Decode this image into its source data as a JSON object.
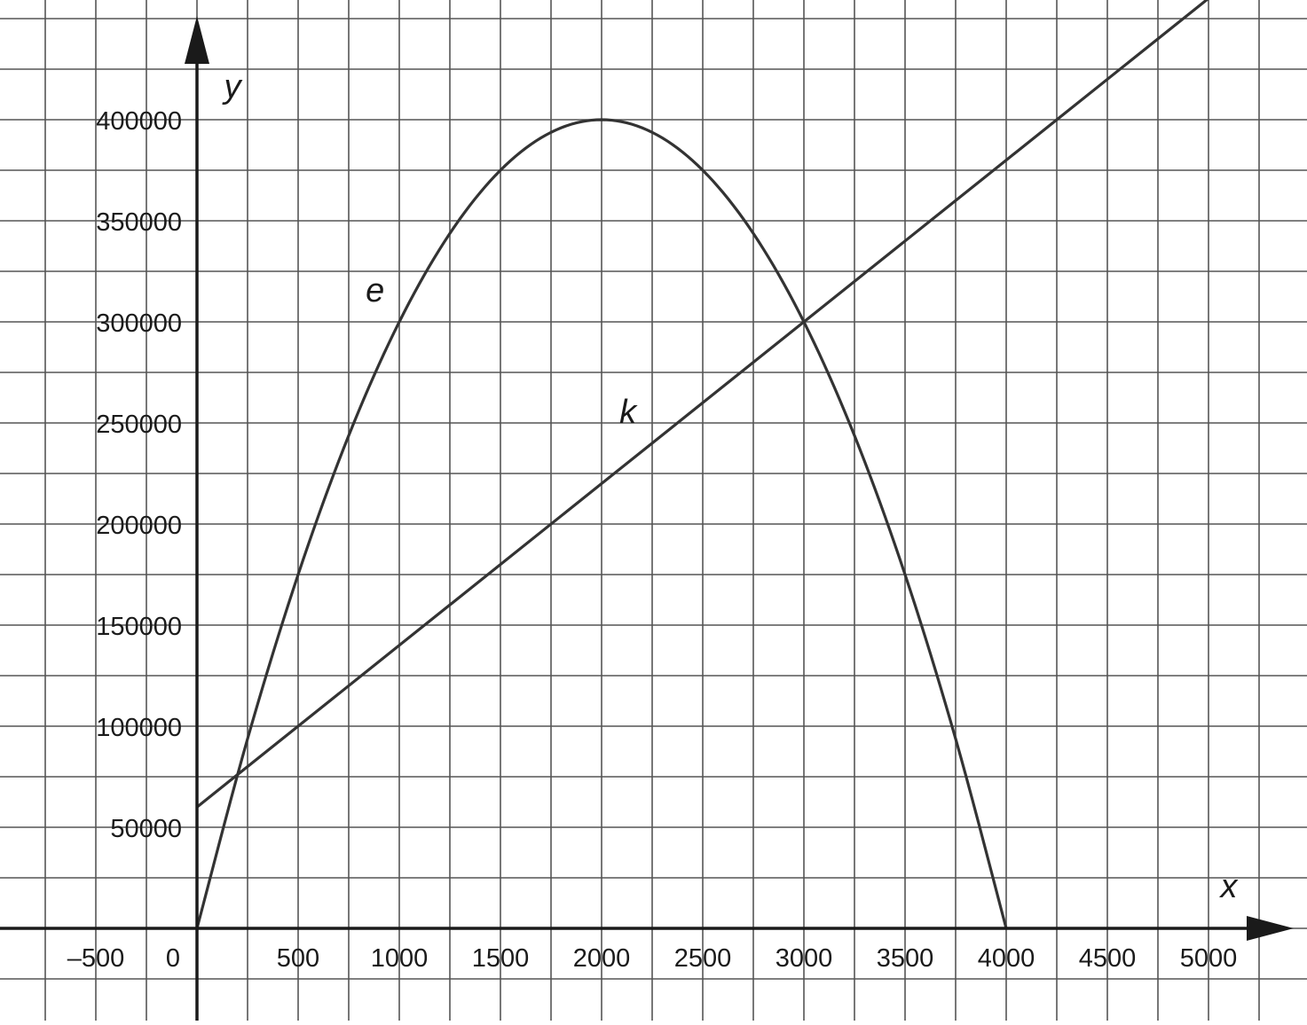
{
  "chart_data": {
    "type": "line",
    "title": "",
    "xlabel": "x",
    "ylabel": "y",
    "xlim": [
      -750,
      5250
    ],
    "ylim": [
      -37500,
      462500
    ],
    "grid": true,
    "x_ticks": [
      -500,
      0,
      500,
      1000,
      1500,
      2000,
      2500,
      3000,
      3500,
      4000,
      4500,
      5000
    ],
    "x_tick_labels": [
      "–500",
      "0",
      "500",
      "1000",
      "1500",
      "2000",
      "2500",
      "3000",
      "3500",
      "4000",
      "4500",
      "5000"
    ],
    "y_ticks": [
      50000,
      100000,
      150000,
      200000,
      250000,
      300000,
      350000,
      400000
    ],
    "y_tick_labels": [
      "50000",
      "100000",
      "150000",
      "200000",
      "250000",
      "300000",
      "350000",
      "400000"
    ],
    "series": [
      {
        "name": "e",
        "kind": "parabola",
        "x": [
          0,
          250,
          500,
          750,
          1000,
          1250,
          1500,
          1750,
          2000,
          2250,
          2500,
          2750,
          3000,
          3250,
          3500,
          3750,
          4000
        ],
        "y": [
          0,
          93750,
          175000,
          243750,
          300000,
          343750,
          375000,
          393750,
          400000,
          393750,
          375000,
          343750,
          300000,
          243750,
          175000,
          93750,
          0
        ]
      },
      {
        "name": "k",
        "kind": "line",
        "x": [
          0,
          1000,
          2000,
          3000,
          4000,
          5000
        ],
        "y": [
          60000,
          140000,
          220000,
          300000,
          380000,
          460000
        ]
      }
    ],
    "curve_labels": [
      {
        "text": "e",
        "x": 880,
        "y": 310000
      },
      {
        "text": "k",
        "x": 2130,
        "y": 250000
      }
    ]
  }
}
